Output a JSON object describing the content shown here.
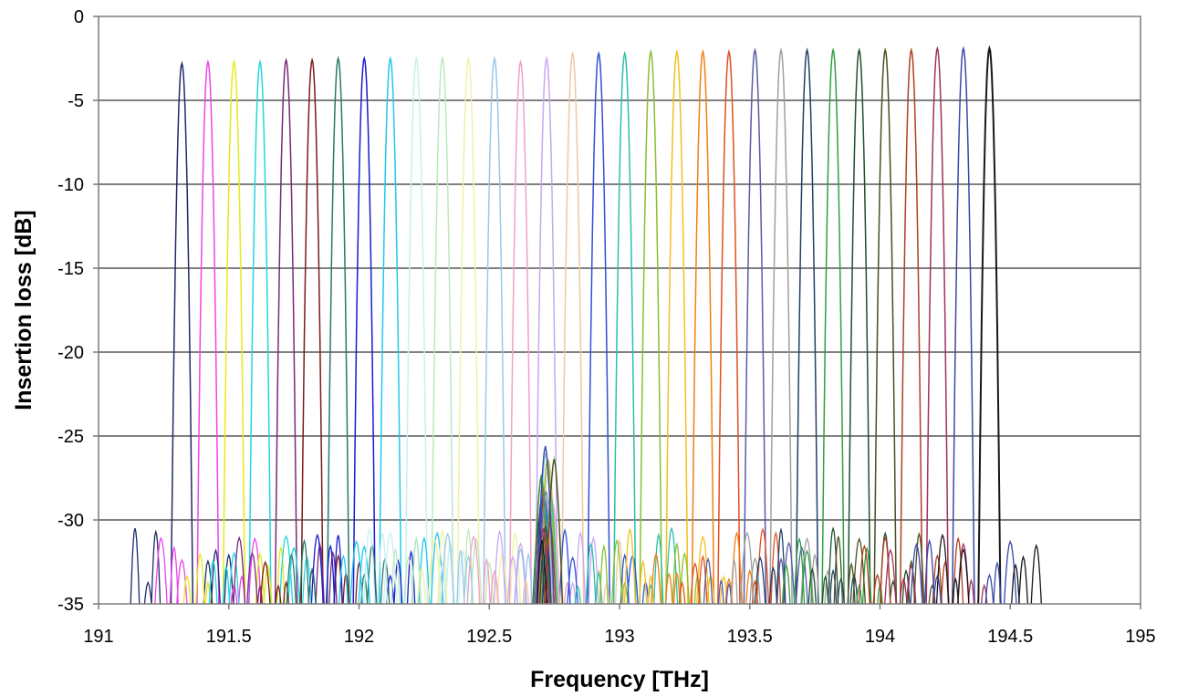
{
  "chart_data": {
    "type": "line",
    "title": "",
    "xlabel": "Frequency [THz]",
    "ylabel": "Insertion loss [dB]",
    "xlim": [
      191,
      195
    ],
    "ylim": [
      -35,
      0
    ],
    "x_ticks": [
      191,
      191.5,
      192,
      192.5,
      193,
      193.5,
      194,
      194.5,
      195
    ],
    "x_tick_labels": [
      "191",
      "191.5",
      "192",
      "192.5",
      "193",
      "193.5",
      "194",
      "194.5",
      "195"
    ],
    "y_ticks": [
      0,
      -5,
      -10,
      -15,
      -20,
      -25,
      -30,
      -35
    ],
    "y_tick_labels": [
      "0",
      "-5",
      "-10",
      "-15",
      "-20",
      "-25",
      "-30",
      "-35"
    ],
    "grid": "horizontal",
    "legend": "none",
    "channel_spacing_thz": 0.1,
    "series": [
      {
        "center": 191.32,
        "peak": -2.8,
        "color": "#1f2a6b"
      },
      {
        "center": 191.42,
        "peak": -2.7,
        "color": "#ee44ee"
      },
      {
        "center": 191.52,
        "peak": -2.7,
        "color": "#e8e81a"
      },
      {
        "center": 191.62,
        "peak": -2.7,
        "color": "#22d8e0"
      },
      {
        "center": 191.72,
        "peak": -2.6,
        "color": "#7a2a7a"
      },
      {
        "center": 191.82,
        "peak": -2.6,
        "color": "#7a1a1a"
      },
      {
        "center": 191.92,
        "peak": -2.5,
        "color": "#2a7a6a"
      },
      {
        "center": 192.02,
        "peak": -2.5,
        "color": "#1a1ad0"
      },
      {
        "center": 192.12,
        "peak": -2.5,
        "color": "#22c8e8"
      },
      {
        "center": 192.22,
        "peak": -2.5,
        "color": "#c8f0f0"
      },
      {
        "center": 192.32,
        "peak": -2.5,
        "color": "#bde8bd"
      },
      {
        "center": 192.42,
        "peak": -2.5,
        "color": "#f0f0a8"
      },
      {
        "center": 192.52,
        "peak": -2.5,
        "color": "#9ac8ea"
      },
      {
        "center": 192.62,
        "peak": -2.7,
        "color": "#f0a0c8"
      },
      {
        "center": 192.72,
        "peak": -2.5,
        "color": "#c8a8f0"
      },
      {
        "center": 192.82,
        "peak": -2.2,
        "color": "#f0c8a0"
      },
      {
        "center": 192.92,
        "peak": -2.2,
        "color": "#3050d8"
      },
      {
        "center": 193.02,
        "peak": -2.2,
        "color": "#2ac0a8"
      },
      {
        "center": 193.12,
        "peak": -2.1,
        "color": "#88c030"
      },
      {
        "center": 193.22,
        "peak": -2.1,
        "color": "#f0c020"
      },
      {
        "center": 193.32,
        "peak": -2.1,
        "color": "#f08010"
      },
      {
        "center": 193.42,
        "peak": -2.1,
        "color": "#e05020"
      },
      {
        "center": 193.52,
        "peak": -2.0,
        "color": "#5a5aa8"
      },
      {
        "center": 193.62,
        "peak": -2.0,
        "color": "#a0a0a0"
      },
      {
        "center": 193.72,
        "peak": -2.0,
        "color": "#20406a"
      },
      {
        "center": 193.82,
        "peak": -2.0,
        "color": "#30a040"
      },
      {
        "center": 193.92,
        "peak": -2.0,
        "color": "#205030"
      },
      {
        "center": 194.02,
        "peak": -2.0,
        "color": "#4a5020"
      },
      {
        "center": 194.12,
        "peak": -2.0,
        "color": "#b04020"
      },
      {
        "center": 194.22,
        "peak": -1.9,
        "color": "#a03060"
      },
      {
        "center": 194.32,
        "peak": -1.9,
        "color": "#3848a8"
      },
      {
        "center": 194.42,
        "peak": -1.9,
        "color": "#181818"
      }
    ]
  }
}
